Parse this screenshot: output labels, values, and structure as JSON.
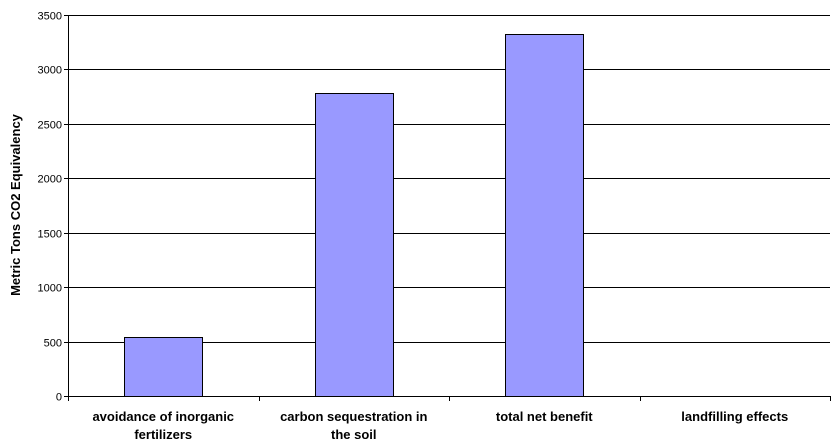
{
  "chart_data": {
    "type": "bar",
    "title": "",
    "xlabel": "",
    "ylabel": "Metric Tons CO2 Equivalency",
    "categories": [
      [
        "avoidance of inorganic",
        "fertilizers"
      ],
      [
        "carbon sequestration in",
        "the soil"
      ],
      [
        "total net benefit"
      ],
      [
        "landfilling effects"
      ]
    ],
    "values": [
      545,
      2780,
      3325,
      0
    ],
    "ylim": [
      0,
      3500
    ],
    "yticks": [
      0,
      500,
      1000,
      1500,
      2000,
      2500,
      3000,
      3500
    ],
    "grid": true,
    "legend": "none",
    "colors": {
      "bar_fill": "#9999ff",
      "bar_stroke": "#000000",
      "grid": "#000000"
    }
  }
}
